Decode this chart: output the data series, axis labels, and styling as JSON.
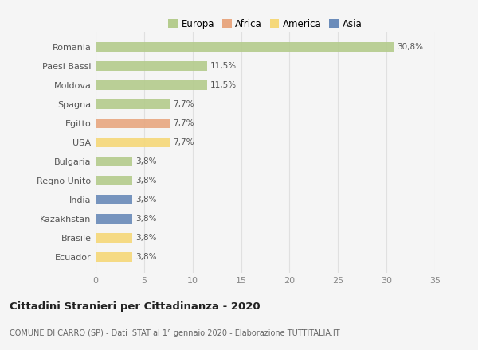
{
  "countries": [
    "Romania",
    "Paesi Bassi",
    "Moldova",
    "Spagna",
    "Egitto",
    "USA",
    "Bulgaria",
    "Regno Unito",
    "India",
    "Kazakhstan",
    "Brasile",
    "Ecuador"
  ],
  "values": [
    30.8,
    11.5,
    11.5,
    7.7,
    7.7,
    7.7,
    3.8,
    3.8,
    3.8,
    3.8,
    3.8,
    3.8
  ],
  "labels": [
    "30,8%",
    "11,5%",
    "11,5%",
    "7,7%",
    "7,7%",
    "7,7%",
    "3,8%",
    "3,8%",
    "3,8%",
    "3,8%",
    "3,8%",
    "3,8%"
  ],
  "colors": [
    "#b5cc8e",
    "#b5cc8e",
    "#b5cc8e",
    "#b5cc8e",
    "#e8a882",
    "#f5d87a",
    "#b5cc8e",
    "#b5cc8e",
    "#6b8cba",
    "#6b8cba",
    "#f5d87a",
    "#f5d87a"
  ],
  "legend_labels": [
    "Europa",
    "Africa",
    "America",
    "Asia"
  ],
  "legend_colors": [
    "#b5cc8e",
    "#e8a882",
    "#f5d87a",
    "#6b8cba"
  ],
  "title": "Cittadini Stranieri per Cittadinanza - 2020",
  "subtitle": "COMUNE DI CARRO (SP) - Dati ISTAT al 1° gennaio 2020 - Elaborazione TUTTITALIA.IT",
  "xlim": [
    0,
    35
  ],
  "xticks": [
    0,
    5,
    10,
    15,
    20,
    25,
    30,
    35
  ],
  "background_color": "#f5f5f5",
  "grid_color": "#e0e0e0",
  "bar_height": 0.5
}
